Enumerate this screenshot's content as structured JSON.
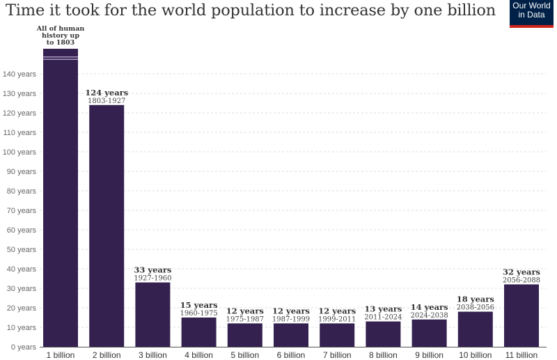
{
  "header": {
    "title": "Time it took for the world population to increase by one billion",
    "logo_line1": "Our World",
    "logo_line2": "in Data"
  },
  "colors": {
    "bar": "#35214f",
    "break_stripe": "#a99bc0",
    "grid": "#dddddd",
    "axis": "#555555",
    "logo_bg": "#002147",
    "logo_accent": "#ce261e"
  },
  "chart_data": {
    "type": "bar",
    "title": "Time it took for the world population to increase by one billion",
    "xlabel": "",
    "ylabel": "",
    "ylim": [
      0,
      150
    ],
    "grid": true,
    "yticks": [
      0,
      10,
      20,
      30,
      40,
      50,
      60,
      70,
      80,
      90,
      100,
      110,
      120,
      130,
      140
    ],
    "ytick_suffix": " years",
    "categories": [
      "1 billion",
      "2 billion",
      "3 billion",
      "4 billion",
      "5 billion",
      "6 billion",
      "7 billion",
      "8 billion",
      "9 billion",
      "10 billion",
      "11 billion"
    ],
    "values": [
      null,
      124,
      33,
      15,
      12,
      12,
      12,
      13,
      14,
      18,
      32
    ],
    "value_labels": [
      "",
      "124 years",
      "33 years",
      "15 years",
      "12 years",
      "12 years",
      "12 years",
      "13 years",
      "14 years",
      "18 years",
      "32 years"
    ],
    "range_labels": [
      "",
      "1803-1927",
      "1927-1960",
      "1960-1975",
      "1975-1987",
      "1987-1999",
      "1999-2011",
      "2011-2024",
      "2024-2038",
      "2038-2056",
      "2056-2088"
    ],
    "first_bar": {
      "note": "broken axis — bar exceeds chart range",
      "annotation": [
        "All of human",
        "history up",
        "to 1803"
      ]
    }
  }
}
